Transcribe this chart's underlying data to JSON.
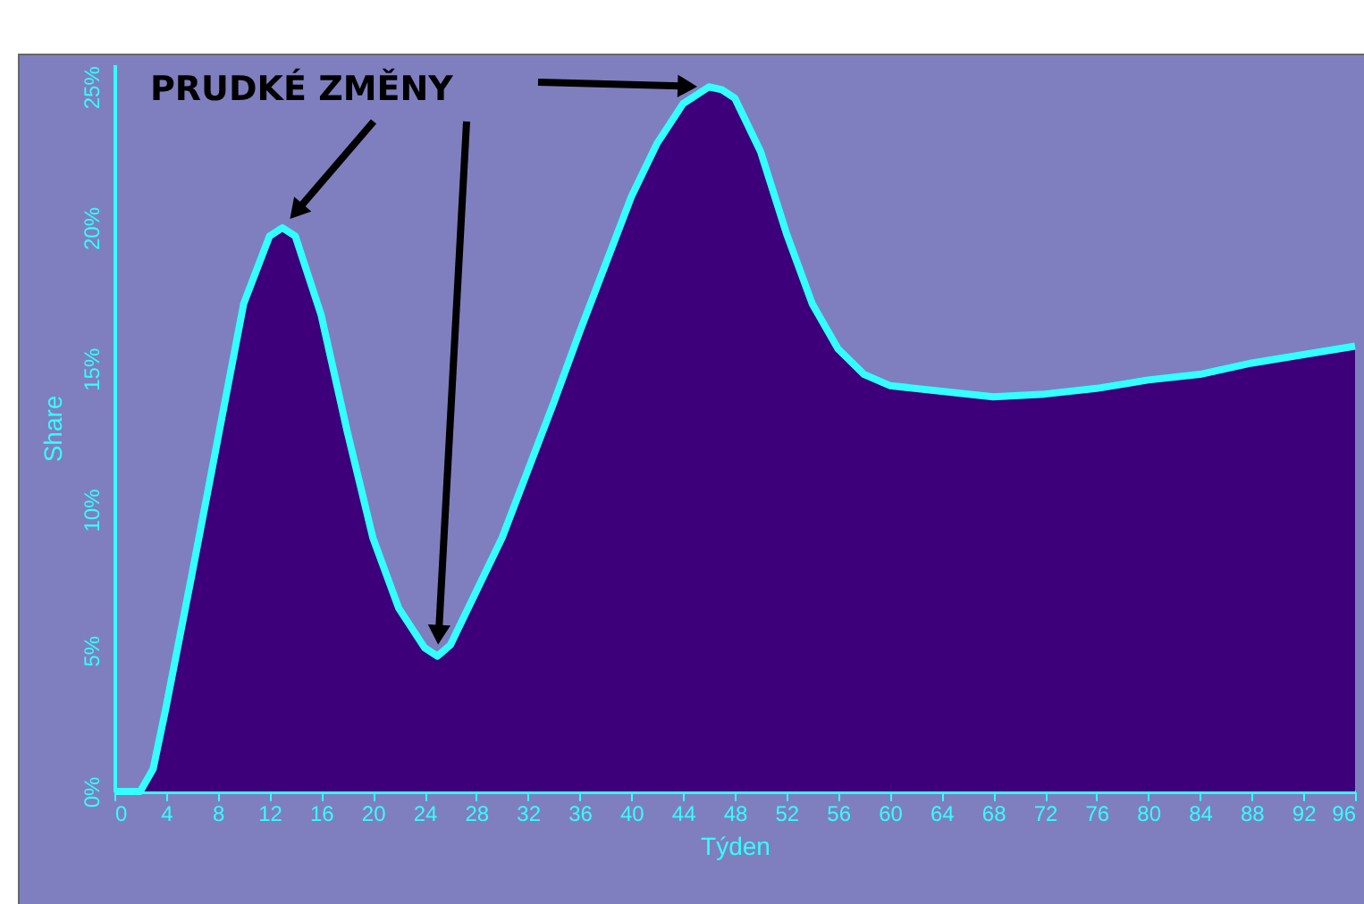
{
  "chart_data": {
    "type": "area",
    "xlabel": "Týden",
    "ylabel": "Share",
    "annotations": [
      "PRUDKÉ ZMĚNY"
    ],
    "x": [
      0,
      2,
      3,
      4,
      6,
      8,
      10,
      12,
      13,
      14,
      16,
      18,
      20,
      22,
      24,
      25,
      26,
      28,
      30,
      32,
      34,
      36,
      38,
      40,
      42,
      44,
      46,
      47,
      48,
      50,
      52,
      54,
      56,
      58,
      60,
      64,
      68,
      72,
      76,
      80,
      84,
      88,
      92,
      96
    ],
    "values": [
      0,
      0,
      0.8,
      3.0,
      7.7,
      12.5,
      17.3,
      19.7,
      20.0,
      19.7,
      16.9,
      12.8,
      9.0,
      6.5,
      5.1,
      4.8,
      5.2,
      7.1,
      9.0,
      11.4,
      13.8,
      16.3,
      18.7,
      21.1,
      23.0,
      24.4,
      25.0,
      24.9,
      24.6,
      22.7,
      19.8,
      17.3,
      15.7,
      14.8,
      14.4,
      14.2,
      14.0,
      14.1,
      14.3,
      14.6,
      14.8,
      15.2,
      15.5,
      15.8
    ],
    "color": "#3d007a",
    "xlim": [
      0,
      96
    ],
    "xticks": [
      0,
      4,
      8,
      12,
      16,
      20,
      24,
      28,
      32,
      36,
      40,
      44,
      48,
      52,
      56,
      60,
      64,
      68,
      72,
      76,
      80,
      84,
      88,
      92,
      96
    ],
    "ylim": [
      0,
      25.8
    ],
    "yticks": [
      {
        "value": 0,
        "label": "0%"
      },
      {
        "value": 5,
        "label": "5%"
      },
      {
        "value": 10,
        "label": "10%"
      },
      {
        "value": 15,
        "label": "15%"
      },
      {
        "value": 20,
        "label": "20%"
      },
      {
        "value": 25,
        "label": "25%"
      }
    ]
  }
}
